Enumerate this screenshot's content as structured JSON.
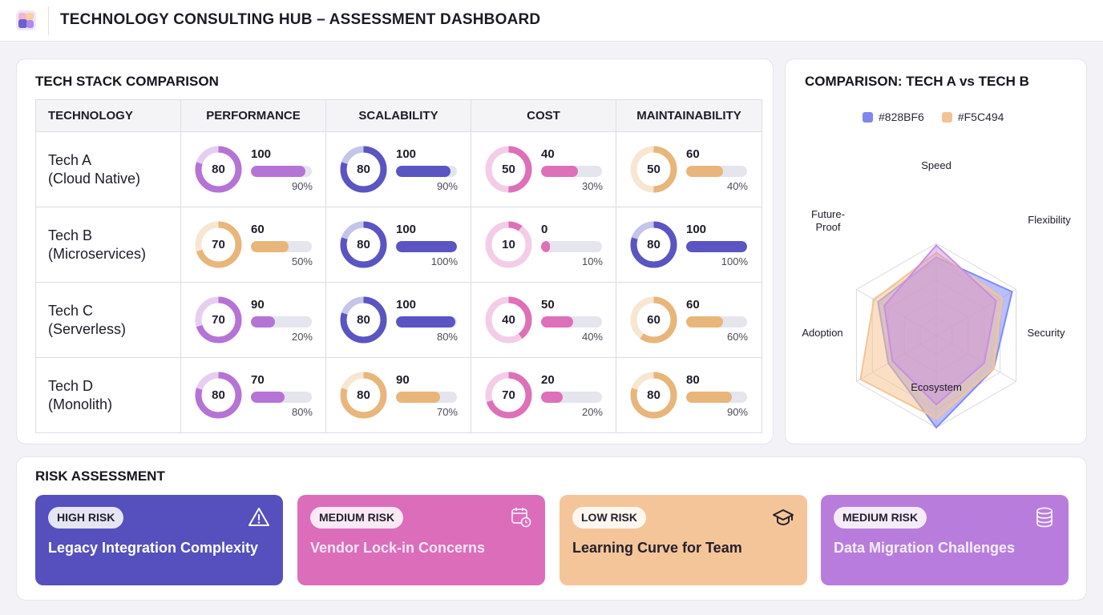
{
  "app": {
    "title": "TECHNOLOGY CONSULTING HUB – ASSESSMENT DASHBOARD"
  },
  "comparison": {
    "title": "TECH STACK COMPARISON",
    "headers": [
      "TECHNOLOGY",
      "PERFORMANCE",
      "SCALABILITY",
      "COST",
      "MAINTAINABILITY"
    ],
    "rows": [
      {
        "name": [
          "Tech A",
          "(Cloud Native)"
        ],
        "metrics": [
          {
            "score": "80",
            "value": "100",
            "percent": "90%",
            "fill": 0.9,
            "color": "#b673d6"
          },
          {
            "score": "80",
            "value": "100",
            "percent": "90%",
            "fill": 0.9,
            "color": "#5a55c2"
          },
          {
            "score": "50",
            "value": "40",
            "percent": "30%",
            "fill": 0.6,
            "color": "#de70b9"
          },
          {
            "score": "50",
            "value": "60",
            "percent": "40%",
            "fill": 0.6,
            "color": "#e8b67a"
          }
        ]
      },
      {
        "name": [
          "Tech B",
          "(Microservices)"
        ],
        "metrics": [
          {
            "score": "70",
            "value": "60",
            "percent": "50%",
            "fill": 0.62,
            "color": "#e8b67a"
          },
          {
            "score": "80",
            "value": "100",
            "percent": "100%",
            "fill": 1.0,
            "color": "#5a55c2"
          },
          {
            "score": "10",
            "value": "0",
            "percent": "10%",
            "fill": 0.15,
            "color": "#de70b9"
          },
          {
            "score": "80",
            "value": "100",
            "percent": "100%",
            "fill": 1.0,
            "color": "#5a55c2"
          }
        ]
      },
      {
        "name": [
          "Tech C",
          "(Serverless)"
        ],
        "metrics": [
          {
            "score": "70",
            "value": "90",
            "percent": "20%",
            "fill": 0.4,
            "color": "#b673d6"
          },
          {
            "score": "80",
            "value": "100",
            "percent": "80%",
            "fill": 0.98,
            "color": "#5a55c2"
          },
          {
            "score": "40",
            "value": "50",
            "percent": "40%",
            "fill": 0.52,
            "color": "#de70b9"
          },
          {
            "score": "60",
            "value": "60",
            "percent": "60%",
            "fill": 0.6,
            "color": "#e8b67a"
          }
        ]
      },
      {
        "name": [
          "Tech D",
          "(Monolith)"
        ],
        "metrics": [
          {
            "score": "80",
            "value": "70",
            "percent": "80%",
            "fill": 0.55,
            "color": "#b673d6"
          },
          {
            "score": "80",
            "value": "90",
            "percent": "70%",
            "fill": 0.72,
            "color": "#e8b67a"
          },
          {
            "score": "70",
            "value": "20",
            "percent": "20%",
            "fill": 0.35,
            "color": "#de70b9"
          },
          {
            "score": "80",
            "value": "80",
            "percent": "90%",
            "fill": 0.75,
            "color": "#e8b67a"
          }
        ]
      }
    ]
  },
  "radar": {
    "title": "COMPARISON: TECH A vs TECH B",
    "legend": [
      {
        "label": "#828BF6",
        "color": "#7f86f0"
      },
      {
        "label": "#F5C494",
        "color": "#f3c293"
      }
    ],
    "axes": [
      "Speed",
      "Flexibility",
      "Security",
      "Ecosystem",
      "Adoption",
      "Future-Proof"
    ],
    "series": [
      {
        "color": "#828BF6",
        "values": [
          0.85,
          0.95,
          0.72,
          1.0,
          0.6,
          0.73
        ]
      },
      {
        "color": "#F5C494",
        "values": [
          0.9,
          0.82,
          0.72,
          0.9,
          0.95,
          0.78
        ]
      },
      {
        "color": "#c98de4",
        "values": [
          0.98,
          0.75,
          0.6,
          0.75,
          0.55,
          0.65
        ]
      }
    ]
  },
  "risk": {
    "title": "RISK ASSESSMENT",
    "items": [
      {
        "level": "HIGH RISK",
        "title": "Legacy Integration Complexity",
        "bg": "#5550bd",
        "text": "#ffffff",
        "icon": "warning-icon"
      },
      {
        "level": "MEDIUM RISK",
        "title": "Vendor Lock-in Concerns",
        "bg": "#dc6dbb",
        "text": "#f8e8f4",
        "icon": "calendar-clock-icon"
      },
      {
        "level": "LOW RISK",
        "title": "Learning Curve for Team",
        "bg": "#f5c59a",
        "text": "#24202a",
        "icon": "graduation-cap-icon"
      },
      {
        "level": "MEDIUM RISK",
        "title": "Data Migration Challenges",
        "bg": "#b87ddc",
        "text": "#f6eefc",
        "icon": "database-icon"
      }
    ]
  }
}
